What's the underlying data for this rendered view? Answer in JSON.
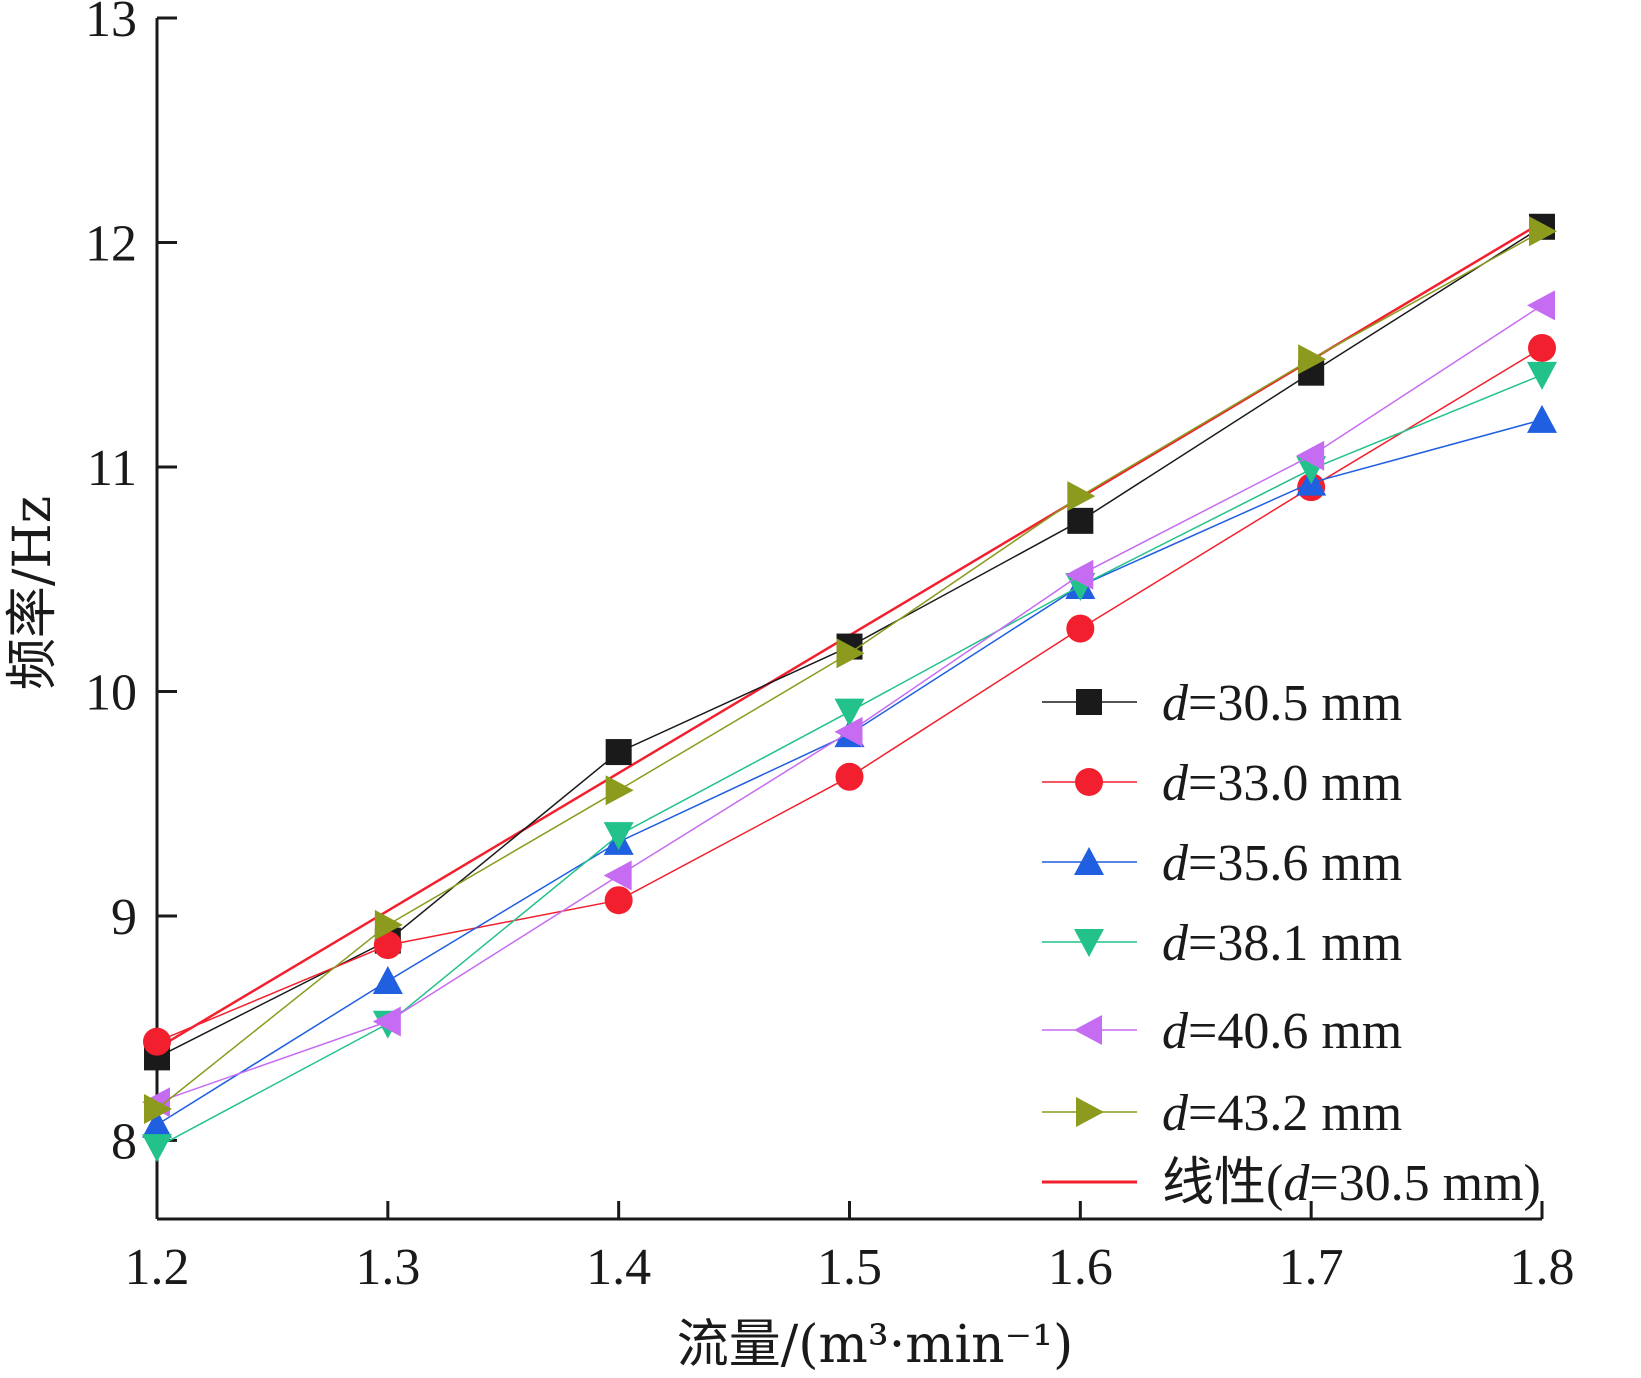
{
  "chart_data": {
    "type": "line",
    "title": "",
    "xlabel": "流量/(m³·min⁻¹)",
    "ylabel": "频率/Hz",
    "xlim": [
      1.2,
      1.8
    ],
    "ylim": [
      7.65,
      13
    ],
    "x_ticks": [
      "1.2",
      "1.3",
      "1.4",
      "1.5",
      "1.6",
      "1.7",
      "1.8"
    ],
    "y_ticks": [
      "8",
      "9",
      "10",
      "11",
      "12",
      "13"
    ],
    "x_tick_values": [
      1.2,
      1.3,
      1.4,
      1.5,
      1.6,
      1.7,
      1.8
    ],
    "y_tick_values": [
      8,
      9,
      10,
      11,
      12,
      13
    ],
    "grid": false,
    "legend_position": "bottom-right",
    "x": [
      1.2,
      1.3,
      1.4,
      1.5,
      1.6,
      1.7,
      1.8
    ],
    "series": [
      {
        "name": "d=30.5 mm",
        "var": "d",
        "rest": "=30.5 mm",
        "color": "#1a1a1a",
        "line_color": "#1a1a1a",
        "marker": "square",
        "values": [
          8.37,
          8.89,
          9.73,
          10.2,
          10.76,
          11.42,
          12.07
        ]
      },
      {
        "name": "d=33.0 mm",
        "var": "d",
        "rest": "=33.0 mm",
        "color": "#f2202e",
        "line_color": "#f2202e",
        "marker": "circle",
        "values": [
          8.44,
          8.87,
          9.07,
          9.62,
          10.28,
          10.91,
          11.53
        ]
      },
      {
        "name": "d=35.6 mm",
        "var": "d",
        "rest": "=35.6 mm",
        "color": "#1f5fe0",
        "line_color": "#1f5fe0",
        "marker": "triangle-up",
        "values": [
          8.07,
          8.71,
          9.33,
          9.81,
          10.47,
          10.93,
          11.21
        ]
      },
      {
        "name": "d=38.1 mm",
        "var": "d",
        "rest": "=38.1 mm",
        "color": "#22c28a",
        "line_color": "#22c28a",
        "marker": "triangle-down",
        "values": [
          7.97,
          8.52,
          9.36,
          9.91,
          10.47,
          10.99,
          11.41
        ]
      },
      {
        "name": "d=40.6 mm",
        "var": "d",
        "rest": "=40.6 mm",
        "color": "#c66cf2",
        "line_color": "#c66cf2",
        "marker": "triangle-left",
        "values": [
          8.17,
          8.53,
          9.18,
          9.82,
          10.52,
          11.05,
          11.72
        ]
      },
      {
        "name": "d=43.2 mm",
        "var": "d",
        "rest": "=43.2 mm",
        "color": "#8c9a1e",
        "line_color": "#8c9a1e",
        "marker": "triangle-right",
        "values": [
          8.14,
          8.96,
          9.56,
          10.17,
          10.87,
          11.48,
          12.05
        ]
      }
    ],
    "fit": {
      "name": "线性(d=30.5 mm)",
      "prefix": "线性(",
      "var": "d",
      "rest": "=30.5 mm)",
      "color": "#f2202e",
      "x": [
        1.2,
        1.8
      ],
      "values": [
        8.41,
        12.09
      ]
    }
  }
}
